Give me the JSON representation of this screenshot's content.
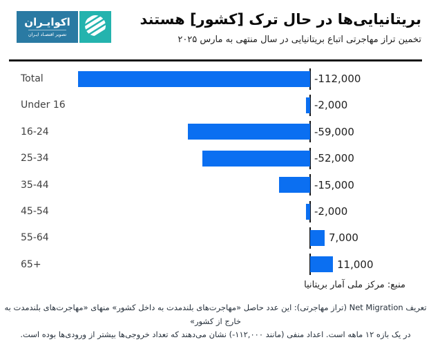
{
  "logo": {
    "name": "اکوایـران",
    "tagline": "تصویر اقتصـاد ایـران",
    "box_color": "#2a7aa3",
    "mark_color": "#24b3ae"
  },
  "chart_data": {
    "type": "bar",
    "orientation": "horizontal",
    "title": "بریتانیایی‌ها در حال ترک [کشور] هستند",
    "subtitle": "تخمین تراز مهاجرتی اتباع بریتانیایی در سال منتهی به مارس ۲۰۲۵",
    "categories": [
      "Total",
      "Under 16",
      "16-24",
      "25-34",
      "35-44",
      "45-54",
      "55-64",
      "65+"
    ],
    "values": [
      -112000,
      -2000,
      -59000,
      -52000,
      -15000,
      -2000,
      7000,
      11000
    ],
    "value_labels": [
      "-112,000",
      "-2,000",
      "-59,000",
      "-52,000",
      "-15,000",
      "-2,000",
      "7,000",
      "11,000"
    ],
    "bar_color": "#0b6ff1",
    "baseline": 0,
    "grid": false,
    "legend": false,
    "source": "منبع: مرکز ملی آمار بریتانیا"
  },
  "footnote": {
    "line1": "تعریف Net Migration (تراز مهاجرتی): این عدد حاصل «مهاجرت‌های بلندمدت به داخل کشور» منهای «مهاجرت‌های بلندمدت به خارج از کشور»",
    "line2": "در یک بازه ۱۲ ماهه است. اعداد منفی (مانند ۱۱۲,۰۰۰-) نشان می‌دهند که تعداد خروجی‌ها بیشتر از ورودی‌ها بوده است."
  }
}
